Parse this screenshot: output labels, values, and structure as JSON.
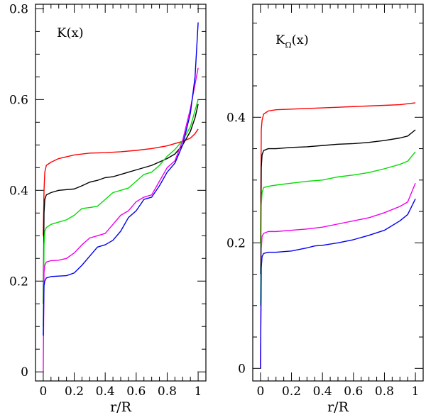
{
  "chart_data": [
    {
      "type": "line",
      "title": "K(x)",
      "xlabel": "r/R",
      "xlim": [
        -0.05,
        1.05
      ],
      "ylim": [
        -0.02,
        0.81
      ],
      "xticks": [
        0,
        0.2,
        0.4,
        0.6,
        0.8,
        1
      ],
      "xtick_labels": [
        "0",
        "0.2",
        "0.4",
        "0.6",
        "0.8",
        "1"
      ],
      "yticks": [
        0,
        0.2,
        0.4,
        0.6,
        0.8
      ],
      "ytick_labels": [
        "0",
        "0.2",
        "0.4",
        "0.6",
        "0.8"
      ],
      "series": [
        {
          "name": "red",
          "color": "#ff0000",
          "points": [
            [
              0,
              0.3
            ],
            [
              0.005,
              0.4
            ],
            [
              0.01,
              0.44
            ],
            [
              0.02,
              0.455
            ],
            [
              0.05,
              0.462
            ],
            [
              0.1,
              0.47
            ],
            [
              0.2,
              0.478
            ],
            [
              0.3,
              0.482
            ],
            [
              0.4,
              0.483
            ],
            [
              0.5,
              0.485
            ],
            [
              0.6,
              0.488
            ],
            [
              0.7,
              0.492
            ],
            [
              0.8,
              0.498
            ],
            [
              0.9,
              0.508
            ],
            [
              0.95,
              0.515
            ],
            [
              0.98,
              0.525
            ],
            [
              1.0,
              0.535
            ]
          ]
        },
        {
          "name": "black",
          "color": "#000000",
          "points": [
            [
              0,
              0.15
            ],
            [
              0.005,
              0.35
            ],
            [
              0.01,
              0.38
            ],
            [
              0.02,
              0.39
            ],
            [
              0.05,
              0.395
            ],
            [
              0.1,
              0.4
            ],
            [
              0.2,
              0.403
            ],
            [
              0.25,
              0.41
            ],
            [
              0.3,
              0.418
            ],
            [
              0.35,
              0.422
            ],
            [
              0.4,
              0.428
            ],
            [
              0.45,
              0.43
            ],
            [
              0.5,
              0.435
            ],
            [
              0.55,
              0.44
            ],
            [
              0.6,
              0.445
            ],
            [
              0.7,
              0.455
            ],
            [
              0.8,
              0.47
            ],
            [
              0.85,
              0.48
            ],
            [
              0.9,
              0.5
            ],
            [
              0.95,
              0.53
            ],
            [
              0.98,
              0.56
            ],
            [
              1.0,
              0.59
            ]
          ]
        },
        {
          "name": "green",
          "color": "#00dd00",
          "points": [
            [
              0,
              0.1
            ],
            [
              0.005,
              0.28
            ],
            [
              0.01,
              0.31
            ],
            [
              0.02,
              0.318
            ],
            [
              0.05,
              0.325
            ],
            [
              0.1,
              0.33
            ],
            [
              0.15,
              0.335
            ],
            [
              0.2,
              0.345
            ],
            [
              0.25,
              0.36
            ],
            [
              0.3,
              0.362
            ],
            [
              0.35,
              0.365
            ],
            [
              0.4,
              0.38
            ],
            [
              0.45,
              0.395
            ],
            [
              0.5,
              0.4
            ],
            [
              0.55,
              0.405
            ],
            [
              0.6,
              0.42
            ],
            [
              0.65,
              0.435
            ],
            [
              0.7,
              0.44
            ],
            [
              0.75,
              0.455
            ],
            [
              0.8,
              0.475
            ],
            [
              0.85,
              0.49
            ],
            [
              0.9,
              0.51
            ],
            [
              0.95,
              0.54
            ],
            [
              1.0,
              0.6
            ]
          ]
        },
        {
          "name": "magenta",
          "color": "#ee00ee",
          "points": [
            [
              0,
              0.0
            ],
            [
              0.005,
              0.22
            ],
            [
              0.01,
              0.235
            ],
            [
              0.02,
              0.242
            ],
            [
              0.05,
              0.245
            ],
            [
              0.1,
              0.246
            ],
            [
              0.15,
              0.25
            ],
            [
              0.2,
              0.262
            ],
            [
              0.25,
              0.28
            ],
            [
              0.3,
              0.295
            ],
            [
              0.35,
              0.3
            ],
            [
              0.4,
              0.305
            ],
            [
              0.45,
              0.325
            ],
            [
              0.5,
              0.345
            ],
            [
              0.55,
              0.355
            ],
            [
              0.6,
              0.375
            ],
            [
              0.65,
              0.385
            ],
            [
              0.7,
              0.39
            ],
            [
              0.75,
              0.42
            ],
            [
              0.8,
              0.45
            ],
            [
              0.85,
              0.465
            ],
            [
              0.9,
              0.51
            ],
            [
              0.95,
              0.58
            ],
            [
              1.0,
              0.67
            ]
          ]
        },
        {
          "name": "blue",
          "color": "#0000ee",
          "points": [
            [
              0,
              0.08
            ],
            [
              0.005,
              0.19
            ],
            [
              0.01,
              0.2
            ],
            [
              0.02,
              0.207
            ],
            [
              0.05,
              0.21
            ],
            [
              0.1,
              0.211
            ],
            [
              0.15,
              0.212
            ],
            [
              0.2,
              0.218
            ],
            [
              0.25,
              0.235
            ],
            [
              0.3,
              0.255
            ],
            [
              0.35,
              0.275
            ],
            [
              0.4,
              0.28
            ],
            [
              0.45,
              0.29
            ],
            [
              0.5,
              0.31
            ],
            [
              0.55,
              0.34
            ],
            [
              0.6,
              0.355
            ],
            [
              0.65,
              0.38
            ],
            [
              0.7,
              0.385
            ],
            [
              0.75,
              0.41
            ],
            [
              0.8,
              0.44
            ],
            [
              0.85,
              0.46
            ],
            [
              0.9,
              0.5
            ],
            [
              0.95,
              0.57
            ],
            [
              0.98,
              0.65
            ],
            [
              1.0,
              0.77
            ]
          ]
        }
      ]
    },
    {
      "type": "line",
      "title": "K",
      "title_subscript": "Ω",
      "title_suffix": "(x)",
      "xlabel": "r/R",
      "xlim": [
        -0.05,
        1.05
      ],
      "ylim": [
        -0.02,
        0.58
      ],
      "xticks": [
        0,
        0.2,
        0.4,
        0.6,
        0.8,
        1
      ],
      "xtick_labels": [
        "0",
        "0.2",
        "0.4",
        "0.6",
        "0.8",
        "1"
      ],
      "yticks": [
        0,
        0.2,
        0.4
      ],
      "ytick_labels": [
        "0",
        "0.2",
        "0.4"
      ],
      "series": [
        {
          "name": "red",
          "color": "#ff0000",
          "points": [
            [
              0,
              0.2
            ],
            [
              0.005,
              0.38
            ],
            [
              0.01,
              0.395
            ],
            [
              0.02,
              0.405
            ],
            [
              0.05,
              0.41
            ],
            [
              0.1,
              0.412
            ],
            [
              0.2,
              0.413
            ],
            [
              0.3,
              0.414
            ],
            [
              0.4,
              0.415
            ],
            [
              0.5,
              0.416
            ],
            [
              0.6,
              0.417
            ],
            [
              0.7,
              0.418
            ],
            [
              0.8,
              0.419
            ],
            [
              0.9,
              0.42
            ],
            [
              1.0,
              0.423
            ]
          ]
        },
        {
          "name": "black",
          "color": "#000000",
          "points": [
            [
              0,
              0.15
            ],
            [
              0.005,
              0.32
            ],
            [
              0.01,
              0.34
            ],
            [
              0.02,
              0.347
            ],
            [
              0.05,
              0.35
            ],
            [
              0.1,
              0.35
            ],
            [
              0.2,
              0.352
            ],
            [
              0.3,
              0.353
            ],
            [
              0.4,
              0.355
            ],
            [
              0.5,
              0.357
            ],
            [
              0.6,
              0.358
            ],
            [
              0.7,
              0.36
            ],
            [
              0.8,
              0.363
            ],
            [
              0.9,
              0.367
            ],
            [
              0.95,
              0.37
            ],
            [
              1.0,
              0.38
            ]
          ]
        },
        {
          "name": "green",
          "color": "#00dd00",
          "points": [
            [
              0,
              0.1
            ],
            [
              0.005,
              0.26
            ],
            [
              0.01,
              0.28
            ],
            [
              0.02,
              0.288
            ],
            [
              0.05,
              0.29
            ],
            [
              0.1,
              0.292
            ],
            [
              0.2,
              0.295
            ],
            [
              0.3,
              0.298
            ],
            [
              0.4,
              0.3
            ],
            [
              0.5,
              0.305
            ],
            [
              0.6,
              0.308
            ],
            [
              0.7,
              0.312
            ],
            [
              0.8,
              0.318
            ],
            [
              0.9,
              0.325
            ],
            [
              0.95,
              0.33
            ],
            [
              1.0,
              0.345
            ]
          ]
        },
        {
          "name": "magenta",
          "color": "#ee00ee",
          "points": [
            [
              0,
              0.0
            ],
            [
              0.005,
              0.19
            ],
            [
              0.01,
              0.21
            ],
            [
              0.02,
              0.215
            ],
            [
              0.05,
              0.218
            ],
            [
              0.1,
              0.218
            ],
            [
              0.2,
              0.22
            ],
            [
              0.3,
              0.222
            ],
            [
              0.4,
              0.225
            ],
            [
              0.5,
              0.23
            ],
            [
              0.6,
              0.235
            ],
            [
              0.7,
              0.24
            ],
            [
              0.8,
              0.248
            ],
            [
              0.9,
              0.258
            ],
            [
              0.95,
              0.265
            ],
            [
              1.0,
              0.295
            ]
          ]
        },
        {
          "name": "blue",
          "color": "#0000ee",
          "points": [
            [
              0,
              0.0
            ],
            [
              0.005,
              0.16
            ],
            [
              0.01,
              0.178
            ],
            [
              0.02,
              0.183
            ],
            [
              0.05,
              0.185
            ],
            [
              0.1,
              0.185
            ],
            [
              0.2,
              0.187
            ],
            [
              0.3,
              0.192
            ],
            [
              0.35,
              0.195
            ],
            [
              0.4,
              0.196
            ],
            [
              0.5,
              0.2
            ],
            [
              0.6,
              0.205
            ],
            [
              0.7,
              0.212
            ],
            [
              0.8,
              0.22
            ],
            [
              0.9,
              0.235
            ],
            [
              0.95,
              0.245
            ],
            [
              1.0,
              0.27
            ]
          ]
        }
      ]
    }
  ]
}
